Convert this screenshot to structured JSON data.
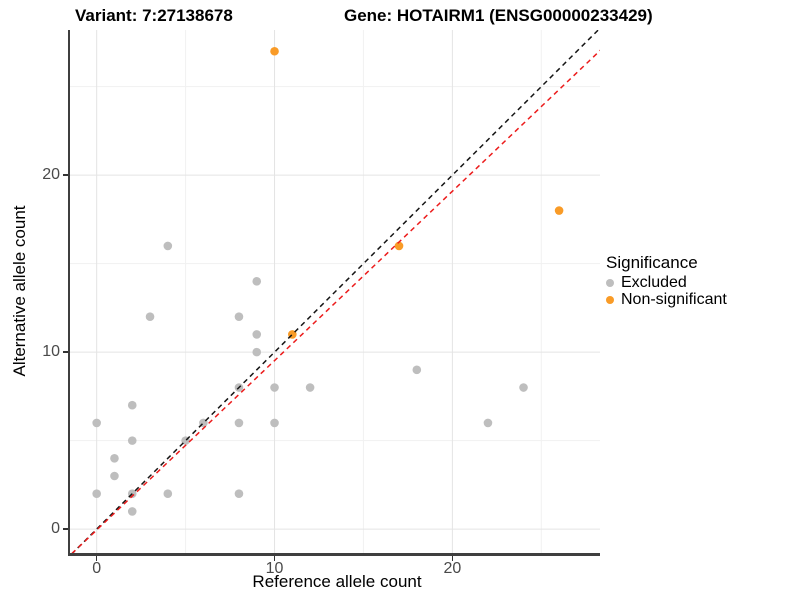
{
  "chart_data": {
    "type": "scatter",
    "titles": {
      "variant": "Variant: 7:27138678",
      "gene": "Gene: HOTAIRM1 (ENSG00000233429)"
    },
    "xlabel": "Reference allele count",
    "ylabel": "Alternative allele count",
    "xlim": [
      -1.5,
      28.3
    ],
    "ylim": [
      -1.35,
      28.2
    ],
    "xticks": [
      0,
      10,
      20
    ],
    "yticks": [
      0,
      10,
      20
    ],
    "minor_xticks": [
      5,
      15,
      25
    ],
    "minor_yticks": [
      5,
      15,
      25
    ],
    "grid": true,
    "legend": {
      "title": "Significance",
      "position": "right",
      "items": [
        {
          "label": "Excluded",
          "color": "#BEBEBE"
        },
        {
          "label": "Non-significant",
          "color": "#F99B27"
        }
      ]
    },
    "series": [
      {
        "name": "Excluded",
        "color": "#BEBEBE",
        "points": [
          [
            0,
            2
          ],
          [
            0,
            6
          ],
          [
            1,
            3
          ],
          [
            1,
            4
          ],
          [
            2,
            1
          ],
          [
            2,
            2
          ],
          [
            2,
            5
          ],
          [
            2,
            7
          ],
          [
            3,
            12
          ],
          [
            4,
            2
          ],
          [
            4,
            16
          ],
          [
            5,
            5
          ],
          [
            6,
            6
          ],
          [
            8,
            2
          ],
          [
            8,
            6
          ],
          [
            8,
            8
          ],
          [
            8,
            12
          ],
          [
            9,
            10
          ],
          [
            9,
            11
          ],
          [
            9,
            14
          ],
          [
            10,
            6
          ],
          [
            10,
            8
          ],
          [
            12,
            8
          ],
          [
            18,
            9
          ],
          [
            22,
            6
          ],
          [
            24,
            8
          ]
        ]
      },
      {
        "name": "Non-significant",
        "color": "#F99B27",
        "points": [
          [
            10,
            27
          ],
          [
            11,
            11
          ],
          [
            17,
            16
          ],
          [
            26,
            18
          ]
        ]
      }
    ],
    "lines": [
      {
        "name": "identity-line",
        "style": "dashed",
        "color": "#151515",
        "slope": 1,
        "intercept": 0
      },
      {
        "name": "regression-line",
        "style": "dashed",
        "color": "#EC1C1C",
        "slope": 0.957,
        "intercept": -0.05
      }
    ]
  }
}
